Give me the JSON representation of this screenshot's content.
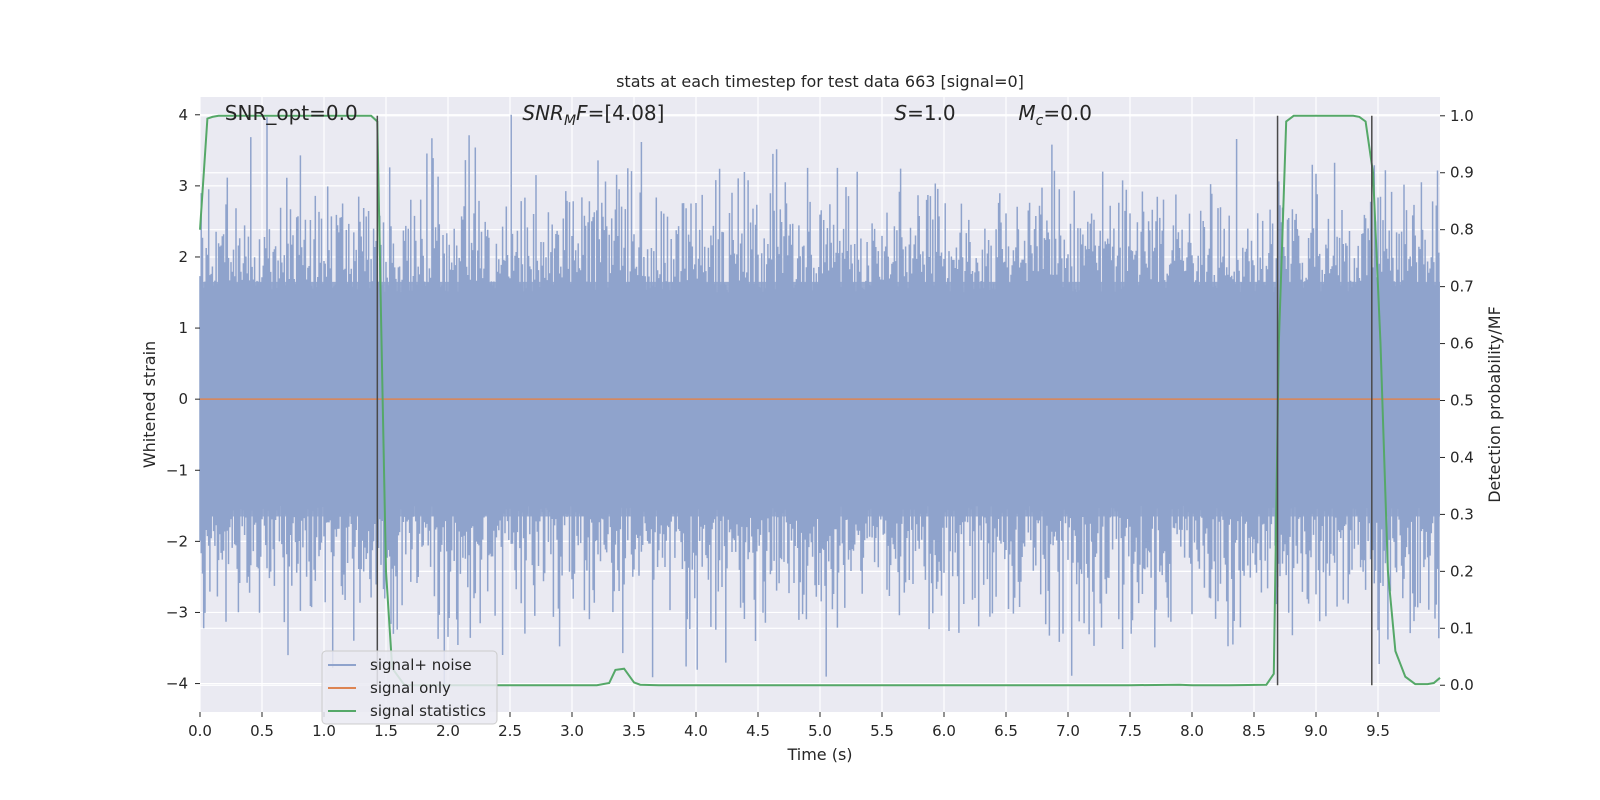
{
  "chart_data": {
    "type": "line",
    "title": "stats at each timestep for test data 663 [signal=0]",
    "xlabel": "Time (s)",
    "ylabel": "Whitened strain",
    "y2label": "Detection probability/MF",
    "xlim": [
      0.0,
      10.0
    ],
    "ylim": [
      -4.4,
      4.25
    ],
    "y2lim": [
      -0.047,
      1.033
    ],
    "xticks": [
      0.0,
      0.5,
      1.0,
      1.5,
      2.0,
      2.5,
      3.0,
      3.5,
      4.0,
      4.5,
      5.0,
      5.5,
      6.0,
      6.5,
      7.0,
      7.5,
      8.0,
      8.5,
      9.0,
      9.5
    ],
    "xtick_labels": [
      "0.0",
      "0.5",
      "1.0",
      "1.5",
      "2.0",
      "2.5",
      "3.0",
      "3.5",
      "4.0",
      "4.5",
      "5.0",
      "5.5",
      "6.0",
      "6.5",
      "7.0",
      "7.5",
      "8.0",
      "8.5",
      "9.0",
      "9.5"
    ],
    "yticks": [
      4,
      3,
      2,
      1,
      0,
      -1,
      -2,
      -3,
      -4
    ],
    "ytick_labels": [
      "4",
      "3",
      "2",
      "1",
      "0",
      "−1",
      "−2",
      "−3",
      "−4"
    ],
    "y2ticks": [
      1.0,
      0.9,
      0.8,
      0.7,
      0.6,
      0.5,
      0.4,
      0.3,
      0.2,
      0.1,
      0.0
    ],
    "y2tick_labels": [
      "1.0",
      "0.9",
      "0.8",
      "0.7",
      "0.6",
      "0.5",
      "0.4",
      "0.3",
      "0.2",
      "0.1",
      "0.0"
    ],
    "grid": true,
    "legend_position": "lower-left",
    "annotations": {
      "snr_opt": "SNR_opt=0.0",
      "snr_mf_main": "SNR",
      "snr_mf_sub": "M",
      "snr_mf_mid": "F",
      "snr_mf_value": "=[4.08]",
      "s_symbol": "S",
      "s_value": "=1.0",
      "mc_symbol": "M",
      "mc_sub": "c",
      "mc_value": "=0.0"
    },
    "series": [
      {
        "name": "signal+ noise",
        "color": "#8fa3cc",
        "axis": "left",
        "style": "noise",
        "num_samples": 1000,
        "std": 1.1,
        "x_range": [
          0.0,
          10.0
        ]
      },
      {
        "name": "signal only",
        "color": "#dd8452",
        "axis": "left",
        "x": [
          0.0,
          10.0
        ],
        "y": [
          0.0,
          0.0
        ]
      },
      {
        "name": "signal statistics",
        "color": "#55a868",
        "axis": "right",
        "x": [
          0.0,
          0.06,
          0.1,
          0.15,
          0.3,
          0.5,
          0.8,
          1.0,
          1.2,
          1.3,
          1.38,
          1.43,
          1.46,
          1.5,
          1.55,
          1.65,
          1.9,
          2.2,
          2.6,
          3.0,
          3.2,
          3.3,
          3.35,
          3.42,
          3.5,
          3.55,
          3.7,
          4.0,
          5.0,
          6.0,
          7.0,
          7.5,
          7.9,
          8.0,
          8.3,
          8.6,
          8.66,
          8.7,
          8.76,
          8.82,
          9.0,
          9.2,
          9.3,
          9.35,
          9.4,
          9.46,
          9.52,
          9.58,
          9.64,
          9.72,
          9.8,
          9.9,
          9.95,
          10.0
        ],
        "y": [
          0.8,
          0.995,
          0.998,
          1.0,
          1.0,
          1.0,
          1.0,
          1.0,
          1.0,
          1.0,
          1.0,
          0.99,
          0.65,
          0.2,
          0.03,
          0.0,
          0.0,
          0.0,
          0.0,
          0.0,
          0.0,
          0.004,
          0.027,
          0.029,
          0.005,
          0.001,
          0.0,
          0.0,
          0.0,
          0.0,
          0.0,
          0.0,
          0.001,
          0.0,
          0.0,
          0.001,
          0.02,
          0.6,
          0.99,
          1.0,
          1.0,
          1.0,
          1.0,
          0.998,
          0.99,
          0.9,
          0.6,
          0.2,
          0.06,
          0.015,
          0.002,
          0.002,
          0.004,
          0.013
        ]
      }
    ],
    "vertical_markers": [
      {
        "x": 1.43,
        "y2_from": 0.0,
        "y2_to": 1.0,
        "color": "#4a4a4a"
      },
      {
        "x": 8.69,
        "y2_from": 0.0,
        "y2_to": 1.0,
        "color": "#4a4a4a"
      },
      {
        "x": 9.45,
        "y2_from": 0.0,
        "y2_to": 1.0,
        "color": "#4a4a4a"
      }
    ],
    "colors": {
      "plot_background": "#eaeaf2",
      "grid": "#ffffff",
      "text": "#262626"
    }
  }
}
